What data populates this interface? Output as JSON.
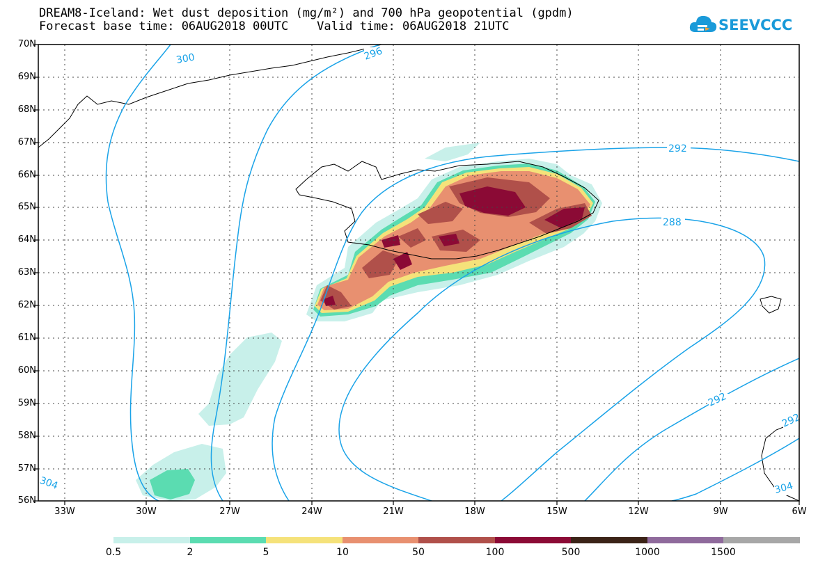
{
  "title": {
    "line1": "DREAM8-Iceland: Wet dust deposition (mg/m²) and 700 hPa geopotential (gpdm)",
    "line2": "Forecast base time: 06AUG2018 00UTC    Valid time: 06AUG2018 21UTC"
  },
  "logo": {
    "text": "SEEVCCC",
    "icon": "cloud-icon",
    "color": "#1a9ad9"
  },
  "map": {
    "lat_labels": [
      "70N",
      "69N",
      "68N",
      "67N",
      "66N",
      "65N",
      "64N",
      "63N",
      "62N",
      "61N",
      "60N",
      "59N",
      "58N",
      "57N",
      "56N"
    ],
    "lon_labels": [
      "33W",
      "30W",
      "27W",
      "24W",
      "21W",
      "18W",
      "15W",
      "12W",
      "9W",
      "6W"
    ],
    "contour_color": "#1aa3e8",
    "contour_labels": [
      "300",
      "296",
      "292",
      "288",
      "292",
      "292",
      "304",
      "304"
    ]
  },
  "legend": {
    "colors": [
      "#c8f0ea",
      "#5bdcb1",
      "#f5e27a",
      "#e89070",
      "#b0504a",
      "#8b0a35",
      "#3b2317",
      "#8f6a9c",
      "#a7a7a7"
    ],
    "labels": [
      "0.5",
      "2",
      "5",
      "10",
      "50",
      "100",
      "500",
      "1000",
      "1500"
    ]
  }
}
